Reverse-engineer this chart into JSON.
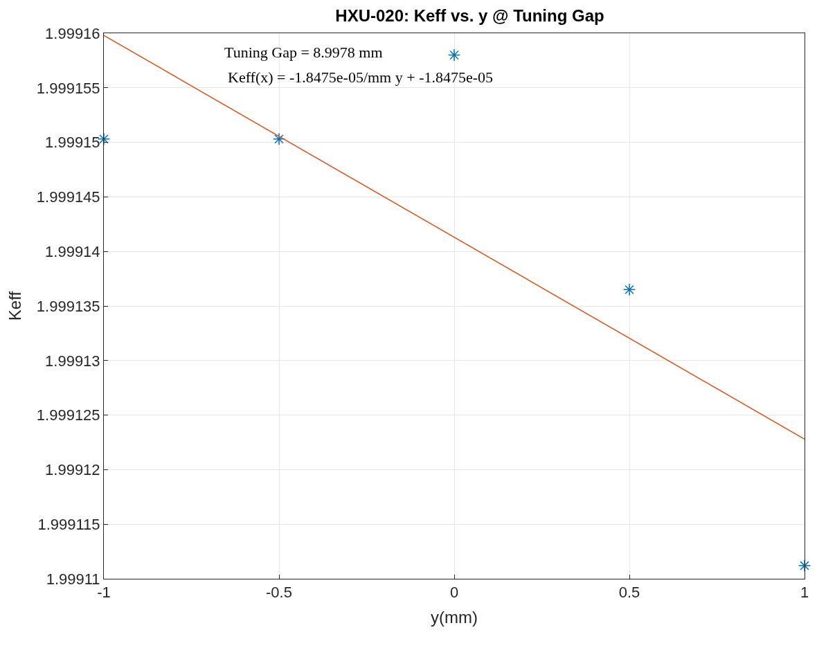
{
  "chart_data": {
    "type": "scatter",
    "title": "HXU-020: Keff vs. y @ Tuning Gap",
    "xlabel": "y(mm)",
    "ylabel": "Keff",
    "annotations": [
      "Tuning Gap = 8.9978 mm",
      "Keff(x) = -1.8475e-05/mm y + -1.8475e-05"
    ],
    "series": [
      {
        "marker": "cross",
        "color": "#0072bd",
        "x": [
          -1,
          -0.5,
          0,
          0.5,
          1
        ],
        "values": [
          1.9991503,
          1.9991503,
          1.999158,
          1.9991365,
          1.9991112
        ]
      },
      {
        "type": "line",
        "marker": "none",
        "line_style": "solid",
        "color": "#d95319",
        "x": [
          -1,
          1
        ],
        "values": [
          1.9991598,
          1.9991228
        ]
      }
    ],
    "xlim": [
      -1,
      1
    ],
    "xticks": [
      -1,
      -0.5,
      0,
      0.5,
      1
    ],
    "ylim": [
      1.99911,
      1.99916
    ],
    "yticks": [
      1.99911,
      1.999115,
      1.99912,
      1.999125,
      1.99913,
      1.999135,
      1.99914,
      1.999145,
      1.99915,
      1.999155,
      1.99916
    ],
    "grid": true
  }
}
